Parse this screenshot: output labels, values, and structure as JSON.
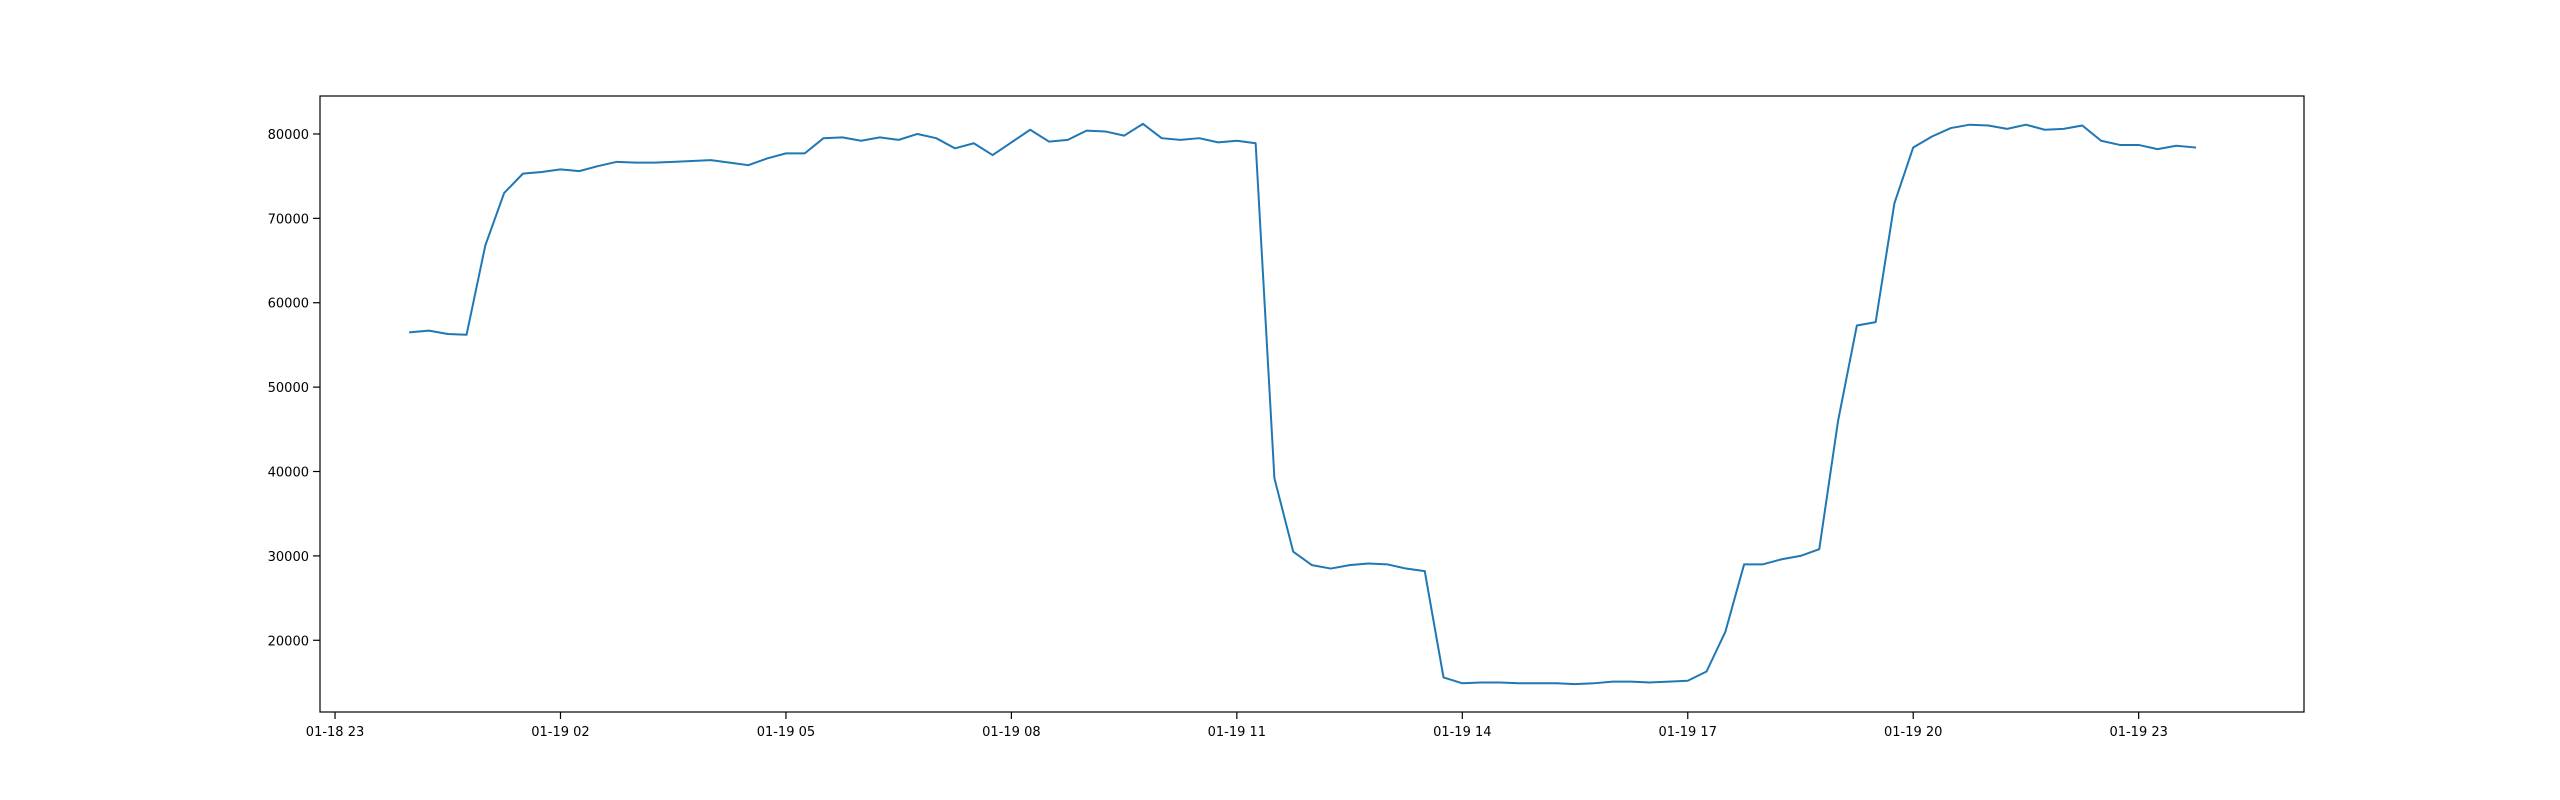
{
  "chart_data": {
    "type": "line",
    "title": "",
    "xlabel": "",
    "ylabel": "",
    "grid": false,
    "colors": {
      "line": "#1f77b4",
      "axes": "#000000",
      "background": "#ffffff"
    },
    "xlim": [
      "2024-01-18 22:48",
      "2024-01-20 01:12"
    ],
    "ylim": [
      11500,
      84500
    ],
    "x_ticks": [
      {
        "value": "2024-01-18 23:00",
        "label": "01-18 23"
      },
      {
        "value": "2024-01-19 02:00",
        "label": "01-19 02"
      },
      {
        "value": "2024-01-19 05:00",
        "label": "01-19 05"
      },
      {
        "value": "2024-01-19 08:00",
        "label": "01-19 08"
      },
      {
        "value": "2024-01-19 11:00",
        "label": "01-19 11"
      },
      {
        "value": "2024-01-19 14:00",
        "label": "01-19 14"
      },
      {
        "value": "2024-01-19 17:00",
        "label": "01-19 17"
      },
      {
        "value": "2024-01-19 20:00",
        "label": "01-19 20"
      },
      {
        "value": "2024-01-19 23:00",
        "label": "01-19 23"
      }
    ],
    "y_ticks": [
      {
        "value": 20000,
        "label": "20000"
      },
      {
        "value": 30000,
        "label": "30000"
      },
      {
        "value": 40000,
        "label": "40000"
      },
      {
        "value": 50000,
        "label": "50000"
      },
      {
        "value": 60000,
        "label": "60000"
      },
      {
        "value": 70000,
        "label": "70000"
      },
      {
        "value": 80000,
        "label": "80000"
      }
    ],
    "series": [
      {
        "x": [
          "2024-01-19 00:00",
          "2024-01-19 00:15",
          "2024-01-19 00:30",
          "2024-01-19 00:45",
          "2024-01-19 01:00",
          "2024-01-19 01:15",
          "2024-01-19 01:30",
          "2024-01-19 01:45",
          "2024-01-19 02:00",
          "2024-01-19 02:15",
          "2024-01-19 02:30",
          "2024-01-19 02:45",
          "2024-01-19 03:00",
          "2024-01-19 03:15",
          "2024-01-19 03:30",
          "2024-01-19 03:45",
          "2024-01-19 04:00",
          "2024-01-19 04:15",
          "2024-01-19 04:30",
          "2024-01-19 04:45",
          "2024-01-19 05:00",
          "2024-01-19 05:15",
          "2024-01-19 05:30",
          "2024-01-19 05:45",
          "2024-01-19 06:00",
          "2024-01-19 06:15",
          "2024-01-19 06:30",
          "2024-01-19 06:45",
          "2024-01-19 07:00",
          "2024-01-19 07:15",
          "2024-01-19 07:30",
          "2024-01-19 07:45",
          "2024-01-19 08:00",
          "2024-01-19 08:15",
          "2024-01-19 08:30",
          "2024-01-19 08:45",
          "2024-01-19 09:00",
          "2024-01-19 09:15",
          "2024-01-19 09:30",
          "2024-01-19 09:45",
          "2024-01-19 10:00",
          "2024-01-19 10:15",
          "2024-01-19 10:30",
          "2024-01-19 10:45",
          "2024-01-19 11:00",
          "2024-01-19 11:15",
          "2024-01-19 11:30",
          "2024-01-19 11:45",
          "2024-01-19 12:00",
          "2024-01-19 12:15",
          "2024-01-19 12:30",
          "2024-01-19 12:45",
          "2024-01-19 13:00",
          "2024-01-19 13:15",
          "2024-01-19 13:30",
          "2024-01-19 13:45",
          "2024-01-19 14:00",
          "2024-01-19 14:15",
          "2024-01-19 14:30",
          "2024-01-19 14:45",
          "2024-01-19 15:00",
          "2024-01-19 15:15",
          "2024-01-19 15:30",
          "2024-01-19 15:45",
          "2024-01-19 16:00",
          "2024-01-19 16:15",
          "2024-01-19 16:30",
          "2024-01-19 16:45",
          "2024-01-19 17:00",
          "2024-01-19 17:15",
          "2024-01-19 17:30",
          "2024-01-19 17:45",
          "2024-01-19 18:00",
          "2024-01-19 18:15",
          "2024-01-19 18:30",
          "2024-01-19 18:45",
          "2024-01-19 19:00",
          "2024-01-19 19:15",
          "2024-01-19 19:30",
          "2024-01-19 19:45",
          "2024-01-19 20:00",
          "2024-01-19 20:15",
          "2024-01-19 20:30",
          "2024-01-19 20:45",
          "2024-01-19 21:00",
          "2024-01-19 21:15",
          "2024-01-19 21:30",
          "2024-01-19 21:45",
          "2024-01-19 22:00",
          "2024-01-19 22:15",
          "2024-01-19 22:30",
          "2024-01-19 22:45",
          "2024-01-19 23:00",
          "2024-01-19 23:15",
          "2024-01-19 23:30",
          "2024-01-19 23:45"
        ],
        "values": [
          56500,
          56700,
          56300,
          56200,
          66800,
          73000,
          75300,
          75500,
          75800,
          75600,
          76200,
          76700,
          76600,
          76600,
          76700,
          76800,
          76900,
          76600,
          76300,
          77100,
          77700,
          77700,
          79500,
          79600,
          79200,
          79600,
          79300,
          80000,
          79500,
          78300,
          78900,
          77500,
          79000,
          80500,
          79100,
          79300,
          80400,
          80300,
          79800,
          81200,
          79500,
          79300,
          79500,
          79000,
          79200,
          78900,
          39200,
          30500,
          28900,
          28500,
          28900,
          29100,
          29000,
          28500,
          28200,
          15600,
          14900,
          15000,
          15000,
          14900,
          14900,
          14900,
          14800,
          14900,
          15100,
          15100,
          15000,
          15100,
          15200,
          16300,
          21000,
          29000,
          29000,
          29600,
          30000,
          30800,
          46000,
          57300,
          57700,
          71800,
          78400,
          79700,
          80700,
          81100,
          81000,
          80600,
          81100,
          80500,
          80600,
          81000,
          79200,
          78700,
          78700,
          78200,
          78600,
          78400
        ]
      }
    ]
  }
}
